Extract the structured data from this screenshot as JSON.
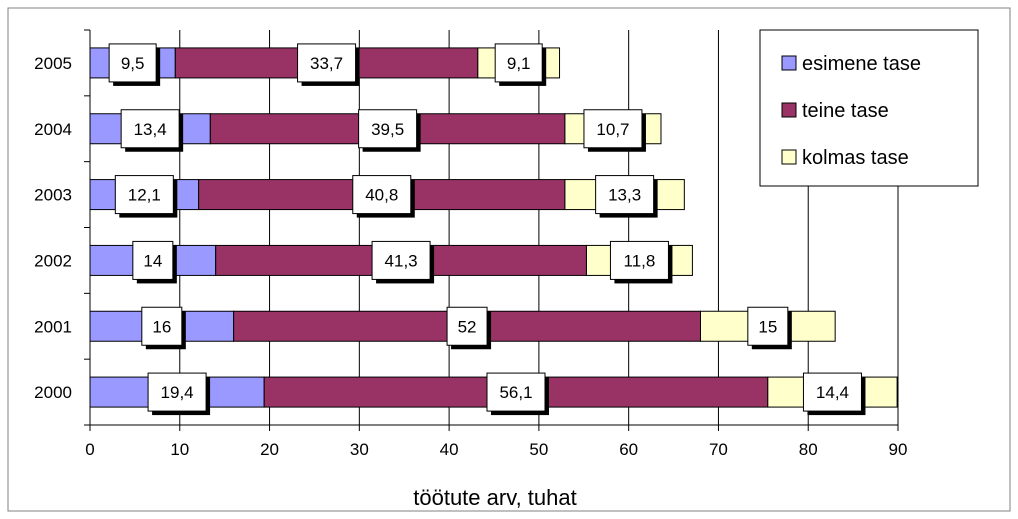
{
  "chart_data": {
    "type": "bar",
    "orientation": "horizontal",
    "stacked": true,
    "categories": [
      "2005",
      "2004",
      "2003",
      "2002",
      "2001",
      "2000"
    ],
    "series": [
      {
        "name": "esimene tase",
        "color": "#9999ff",
        "values": [
          9.5,
          13.4,
          12.1,
          14,
          16,
          19.4
        ],
        "labels": [
          "9,5",
          "13,4",
          "12,1",
          "14",
          "16",
          "19,4"
        ]
      },
      {
        "name": "teine tase",
        "color": "#993366",
        "values": [
          33.7,
          39.5,
          40.8,
          41.3,
          52,
          56.1
        ],
        "labels": [
          "33,7",
          "39,5",
          "40,8",
          "41,3",
          "52",
          "56,1"
        ]
      },
      {
        "name": "kolmas tase",
        "color": "#ffffcc",
        "values": [
          9.1,
          10.7,
          13.3,
          11.8,
          15,
          14.4
        ],
        "labels": [
          "9,1",
          "10,7",
          "13,3",
          "11,8",
          "15",
          "14,4"
        ]
      }
    ],
    "xlabel": "töötute arv, tuhat",
    "ylabel": "",
    "title": "",
    "xlim": [
      0,
      90
    ],
    "xticks": [
      0,
      10,
      20,
      30,
      40,
      50,
      60,
      70,
      80,
      90
    ],
    "grid": "vertical",
    "legend": "top-right"
  }
}
